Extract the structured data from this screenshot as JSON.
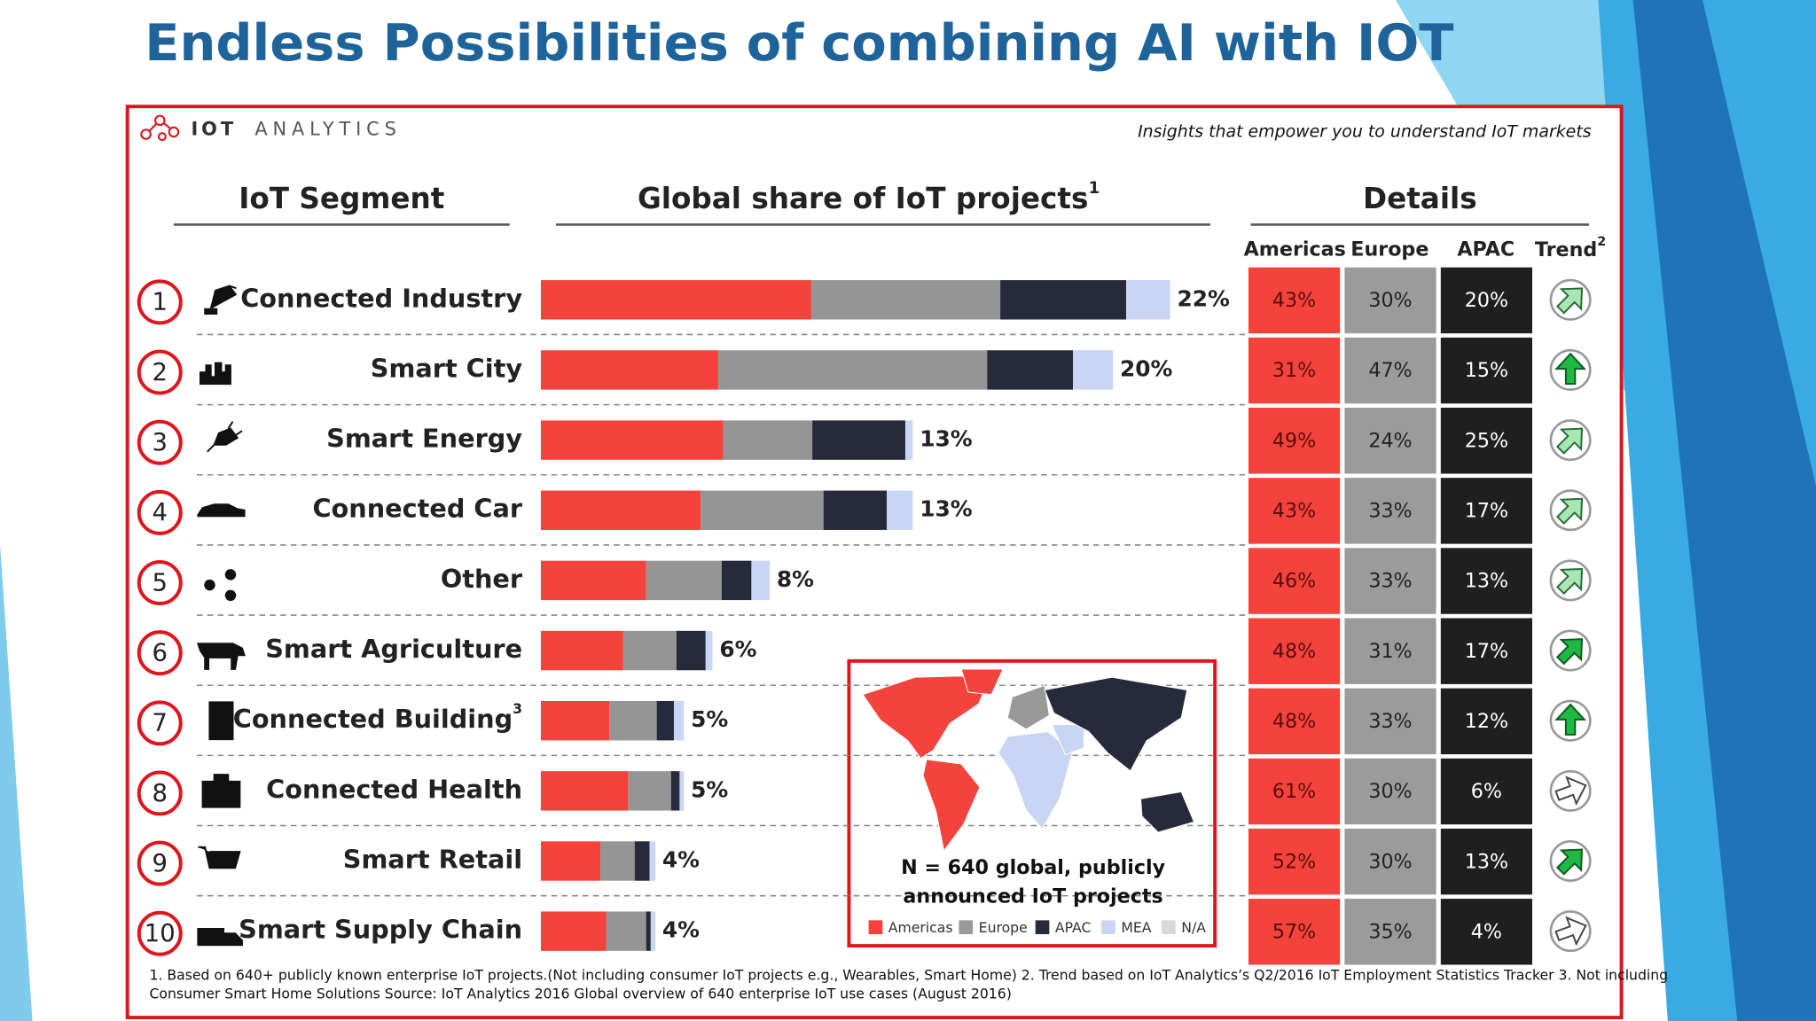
{
  "title": "Endless Possibilities of combining AI with IOT",
  "logo": {
    "brand": "IOT",
    "name": "ANALYTICS"
  },
  "tagline": "Insights that empower you to understand IoT markets",
  "headers": {
    "segment": "IoT Segment",
    "share": "Global share of IoT projects",
    "share_note": "1",
    "details": "Details"
  },
  "columns": {
    "americas": "Americas",
    "europe": "Europe",
    "apac": "APAC",
    "trend": "Trend",
    "trend_note": "2"
  },
  "rows": [
    {
      "rank": 1,
      "segment": "Connected Industry",
      "share": {
        "value": 22,
        "label": "22%"
      },
      "americas": {
        "value": 43,
        "label": "43%"
      },
      "europe": {
        "value": 30,
        "label": "30%"
      },
      "apac": {
        "value": 20,
        "label": "20%"
      },
      "trend": "up-right"
    },
    {
      "rank": 2,
      "segment": "Smart City",
      "share": {
        "value": 20,
        "label": "20%"
      },
      "americas": {
        "value": 31,
        "label": "31%"
      },
      "europe": {
        "value": 47,
        "label": "47%"
      },
      "apac": {
        "value": 15,
        "label": "15%"
      },
      "trend": "up"
    },
    {
      "rank": 3,
      "segment": "Smart Energy",
      "share": {
        "value": 13,
        "label": "13%"
      },
      "americas": {
        "value": 49,
        "label": "49%"
      },
      "europe": {
        "value": 24,
        "label": "24%"
      },
      "apac": {
        "value": 25,
        "label": "25%"
      },
      "trend": "up-right"
    },
    {
      "rank": 4,
      "segment": "Connected Car",
      "share": {
        "value": 13,
        "label": "13%"
      },
      "americas": {
        "value": 43,
        "label": "43%"
      },
      "europe": {
        "value": 33,
        "label": "33%"
      },
      "apac": {
        "value": 17,
        "label": "17%"
      },
      "trend": "up-right"
    },
    {
      "rank": 5,
      "segment": "Other",
      "share": {
        "value": 8,
        "label": "8%"
      },
      "americas": {
        "value": 46,
        "label": "46%"
      },
      "europe": {
        "value": 33,
        "label": "33%"
      },
      "apac": {
        "value": 13,
        "label": "13%"
      },
      "trend": "up-right"
    },
    {
      "rank": 6,
      "segment": "Smart Agriculture",
      "share": {
        "value": 6,
        "label": "6%"
      },
      "americas": {
        "value": 48,
        "label": "48%"
      },
      "europe": {
        "value": 31,
        "label": "31%"
      },
      "apac": {
        "value": 17,
        "label": "17%"
      },
      "trend": "up-right-strong"
    },
    {
      "rank": 7,
      "segment": "Connected Building",
      "note": "3",
      "share": {
        "value": 5,
        "label": "5%"
      },
      "americas": {
        "value": 48,
        "label": "48%"
      },
      "europe": {
        "value": 33,
        "label": "33%"
      },
      "apac": {
        "value": 12,
        "label": "12%"
      },
      "trend": "up"
    },
    {
      "rank": 8,
      "segment": "Connected Health",
      "share": {
        "value": 5,
        "label": "5%"
      },
      "americas": {
        "value": 61,
        "label": "61%"
      },
      "europe": {
        "value": 30,
        "label": "30%"
      },
      "apac": {
        "value": 6,
        "label": "6%"
      },
      "trend": "right"
    },
    {
      "rank": 9,
      "segment": "Smart Retail",
      "share": {
        "value": 4,
        "label": "4%"
      },
      "americas": {
        "value": 52,
        "label": "52%"
      },
      "europe": {
        "value": 30,
        "label": "30%"
      },
      "apac": {
        "value": 13,
        "label": "13%"
      },
      "trend": "up-right-strong"
    },
    {
      "rank": 10,
      "segment": "Smart Supply Chain",
      "share": {
        "value": 4,
        "label": "4%"
      },
      "americas": {
        "value": 57,
        "label": "57%"
      },
      "europe": {
        "value": 35,
        "label": "35%"
      },
      "apac": {
        "value": 4,
        "label": "4%"
      },
      "trend": "right"
    }
  ],
  "map": {
    "caption": [
      "N = 640 global, publicly",
      "announced IoT projects"
    ],
    "legend": [
      {
        "name": "Americas",
        "color": "#f4433c"
      },
      {
        "name": "Europe",
        "color": "#999999"
      },
      {
        "name": "APAC",
        "color": "#262a3a"
      },
      {
        "name": "MEA",
        "color": "#c9d5f2"
      },
      {
        "name": "N/A",
        "color": "#d9d9d9"
      }
    ]
  },
  "footnotes": [
    "1. Based on 640+ publicly known enterprise IoT projects.(Not including consumer IoT projects e.g.,  Wearables, Smart Home) 2. Trend based on IoT Analytics’s Q2/2016 IoT Employment Statistics Tracker  3. Not including",
    "Consumer Smart Home Solutions    Source: IoT Analytics 2016 Global overview of 640 enterprise IoT use cases (August 2016)"
  ]
}
